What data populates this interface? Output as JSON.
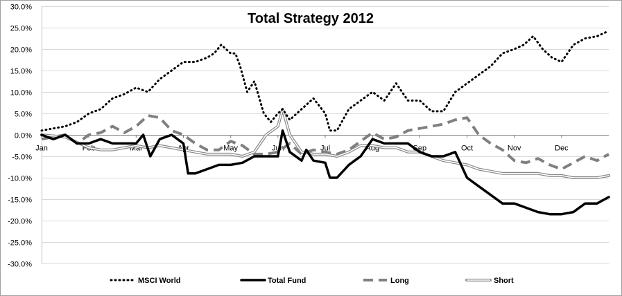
{
  "chart_data": {
    "type": "line",
    "title": "Total Strategy 2012",
    "xlabel": "",
    "ylabel": "",
    "ylim": [
      -0.3,
      0.3
    ],
    "y_ticks": [
      0.3,
      0.25,
      0.2,
      0.15,
      0.1,
      0.05,
      0.0,
      -0.05,
      -0.1,
      -0.15,
      -0.2,
      -0.25,
      -0.3
    ],
    "y_tick_labels": [
      "30.0%",
      "25.0%",
      "20.0%",
      "15.0%",
      "10.0%",
      "5.0%",
      "0.0%",
      "-5.0%",
      "-10.0%",
      "-15.0%",
      "-20.0%",
      "-25.0%",
      "-30.0%"
    ],
    "x_range": [
      0,
      12
    ],
    "x_ticks": [
      0,
      1,
      2,
      3,
      4,
      5,
      6,
      7,
      8,
      9,
      10,
      11
    ],
    "x_tick_labels": [
      "Jan",
      "Feb",
      "Mar",
      "Apr",
      "May",
      "Jun",
      "Jul",
      "Aug",
      "Sep",
      "Oct",
      "Nov",
      "Dec"
    ],
    "grid": true,
    "legend_position": "bottom",
    "series": [
      {
        "name": "MSCI World",
        "style": "dotted",
        "color": "#000000",
        "x": [
          0.0,
          0.25,
          0.5,
          0.75,
          1.0,
          1.25,
          1.5,
          1.75,
          2.0,
          2.25,
          2.5,
          2.75,
          3.0,
          3.25,
          3.5,
          3.65,
          3.8,
          4.0,
          4.1,
          4.2,
          4.35,
          4.5,
          4.7,
          4.85,
          5.0,
          5.1,
          5.25,
          5.5,
          5.75,
          6.0,
          6.1,
          6.25,
          6.5,
          6.75,
          7.0,
          7.25,
          7.5,
          7.75,
          8.0,
          8.25,
          8.5,
          8.75,
          9.0,
          9.25,
          9.5,
          9.75,
          10.0,
          10.2,
          10.4,
          10.6,
          10.8,
          11.0,
          11.25,
          11.5,
          11.75,
          11.95
        ],
        "y": [
          0.01,
          0.015,
          0.02,
          0.03,
          0.05,
          0.06,
          0.085,
          0.095,
          0.11,
          0.1,
          0.13,
          0.15,
          0.17,
          0.17,
          0.18,
          0.19,
          0.21,
          0.19,
          0.19,
          0.16,
          0.1,
          0.125,
          0.05,
          0.03,
          0.05,
          0.06,
          0.035,
          0.06,
          0.085,
          0.05,
          0.01,
          0.01,
          0.06,
          0.08,
          0.1,
          0.08,
          0.12,
          0.08,
          0.08,
          0.055,
          0.055,
          0.1,
          0.12,
          0.14,
          0.16,
          0.19,
          0.2,
          0.21,
          0.23,
          0.2,
          0.18,
          0.17,
          0.21,
          0.225,
          0.23,
          0.24
        ]
      },
      {
        "name": "Total Fund",
        "style": "solid-thick",
        "color": "#000000",
        "x": [
          0.0,
          0.25,
          0.5,
          0.75,
          1.0,
          1.25,
          1.5,
          1.75,
          2.0,
          2.15,
          2.3,
          2.5,
          2.75,
          3.0,
          3.1,
          3.25,
          3.5,
          3.75,
          4.0,
          4.25,
          4.5,
          4.75,
          5.0,
          5.1,
          5.25,
          5.5,
          5.6,
          5.75,
          6.0,
          6.1,
          6.25,
          6.5,
          6.75,
          7.0,
          7.25,
          7.5,
          7.75,
          8.0,
          8.25,
          8.5,
          8.75,
          9.0,
          9.25,
          9.5,
          9.75,
          10.0,
          10.25,
          10.5,
          10.75,
          11.0,
          11.25,
          11.5,
          11.75,
          12.0
        ],
        "y": [
          0.0,
          -0.01,
          0.0,
          -0.02,
          -0.02,
          -0.01,
          -0.02,
          -0.02,
          -0.02,
          0.0,
          -0.05,
          -0.01,
          0.0,
          -0.02,
          -0.09,
          -0.09,
          -0.08,
          -0.07,
          -0.07,
          -0.065,
          -0.05,
          -0.05,
          -0.05,
          0.01,
          -0.04,
          -0.06,
          -0.035,
          -0.06,
          -0.065,
          -0.1,
          -0.1,
          -0.07,
          -0.05,
          -0.01,
          -0.02,
          -0.02,
          -0.02,
          -0.04,
          -0.05,
          -0.05,
          -0.04,
          -0.1,
          -0.12,
          -0.14,
          -0.16,
          -0.16,
          -0.17,
          -0.18,
          -0.185,
          -0.185,
          -0.18,
          -0.16,
          -0.16,
          -0.145
        ]
      },
      {
        "name": "Long",
        "style": "dashed",
        "color": "#808080",
        "x": [
          0.0,
          0.25,
          0.5,
          0.75,
          1.0,
          1.25,
          1.5,
          1.75,
          2.0,
          2.25,
          2.5,
          2.75,
          3.0,
          3.25,
          3.5,
          3.75,
          4.0,
          4.25,
          4.5,
          4.75,
          5.0,
          5.25,
          5.5,
          5.75,
          6.0,
          6.25,
          6.5,
          6.75,
          7.0,
          7.25,
          7.5,
          7.75,
          8.0,
          8.25,
          8.5,
          8.75,
          9.0,
          9.25,
          9.5,
          9.75,
          10.0,
          10.25,
          10.5,
          10.75,
          11.0,
          11.25,
          11.5,
          11.75,
          12.0
        ],
        "y": [
          -0.01,
          -0.005,
          0.0,
          -0.02,
          0.0,
          0.005,
          0.02,
          0.005,
          0.02,
          0.045,
          0.04,
          0.01,
          0.0,
          -0.02,
          -0.035,
          -0.035,
          -0.015,
          -0.025,
          -0.045,
          -0.045,
          -0.04,
          -0.02,
          -0.045,
          -0.035,
          -0.04,
          -0.045,
          -0.035,
          -0.015,
          0.005,
          -0.01,
          -0.005,
          0.01,
          0.015,
          0.02,
          0.025,
          0.035,
          0.04,
          0.0,
          -0.02,
          -0.035,
          -0.06,
          -0.065,
          -0.055,
          -0.07,
          -0.08,
          -0.065,
          -0.05,
          -0.06,
          -0.045
        ]
      },
      {
        "name": "Short",
        "style": "double",
        "color": "#888888",
        "x": [
          0.0,
          0.5,
          0.8,
          1.0,
          1.25,
          1.5,
          1.75,
          2.0,
          2.25,
          2.5,
          2.75,
          3.0,
          3.25,
          3.5,
          3.75,
          4.0,
          4.25,
          4.5,
          4.75,
          5.0,
          5.1,
          5.25,
          5.5,
          5.75,
          6.0,
          6.25,
          6.5,
          6.75,
          7.0,
          7.25,
          7.5,
          7.75,
          8.0,
          8.25,
          8.5,
          8.75,
          9.0,
          9.25,
          9.5,
          9.75,
          10.0,
          10.25,
          10.5,
          10.75,
          11.0,
          11.25,
          11.5,
          11.75,
          12.0
        ],
        "y": [
          0.0,
          -0.005,
          -0.02,
          -0.03,
          -0.035,
          -0.035,
          -0.03,
          -0.025,
          -0.03,
          -0.025,
          -0.03,
          -0.035,
          -0.04,
          -0.045,
          -0.045,
          -0.045,
          -0.05,
          -0.04,
          0.0,
          0.02,
          0.06,
          0.0,
          -0.04,
          -0.045,
          -0.045,
          -0.05,
          -0.04,
          -0.025,
          -0.025,
          -0.03,
          -0.03,
          -0.04,
          -0.04,
          -0.05,
          -0.06,
          -0.065,
          -0.07,
          -0.08,
          -0.085,
          -0.09,
          -0.09,
          -0.09,
          -0.09,
          -0.095,
          -0.095,
          -0.1,
          -0.1,
          -0.1,
          -0.095
        ]
      }
    ]
  }
}
